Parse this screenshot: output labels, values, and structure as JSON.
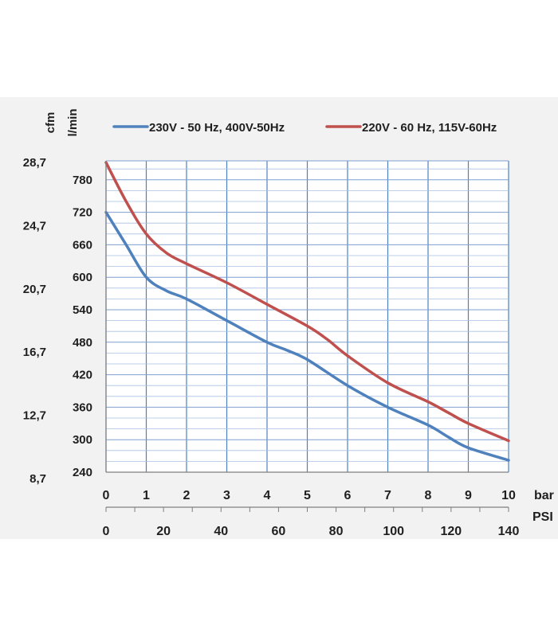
{
  "chart_data": {
    "type": "line",
    "x_primary": {
      "unit": "bar",
      "ticks": [
        "0",
        "1",
        "2",
        "3",
        "4",
        "5",
        "6",
        "7",
        "8",
        "9",
        "10"
      ],
      "range": [
        0,
        10
      ]
    },
    "x_secondary": {
      "unit": "PSI",
      "ticks": [
        "0",
        "20",
        "40",
        "60",
        "80",
        "100",
        "120",
        "140"
      ],
      "range": [
        0,
        140
      ]
    },
    "y_primary": {
      "unit": "l/min",
      "ticks": [
        "240",
        "300",
        "360",
        "420",
        "480",
        "540",
        "600",
        "660",
        "720",
        "780"
      ],
      "range": [
        240,
        815
      ]
    },
    "y_secondary": {
      "unit": "cfm",
      "ticks": [
        "8,7",
        "12,7",
        "16,7",
        "20,7",
        "24,7",
        "28,7"
      ]
    },
    "series": [
      {
        "name": "230V - 50 Hz, 400V-50Hz",
        "color": "#4f81bd",
        "x": [
          0,
          0.5,
          1,
          1.5,
          2,
          3,
          4,
          4.5,
          5,
          6,
          7,
          8,
          8.5,
          9,
          10
        ],
        "y": [
          720,
          660,
          600,
          575,
          560,
          520,
          480,
          465,
          448,
          400,
          360,
          327,
          305,
          285,
          262
        ]
      },
      {
        "name": "220V - 60 Hz, 115V-60Hz",
        "color": "#c0504d",
        "x": [
          0,
          0.5,
          1,
          1.5,
          2,
          3,
          4,
          5,
          5.5,
          6,
          7,
          8,
          8.5,
          9,
          10
        ],
        "y": [
          812,
          740,
          680,
          645,
          625,
          590,
          550,
          510,
          485,
          455,
          405,
          370,
          350,
          330,
          298
        ]
      }
    ],
    "grid": true,
    "legend": "top"
  }
}
